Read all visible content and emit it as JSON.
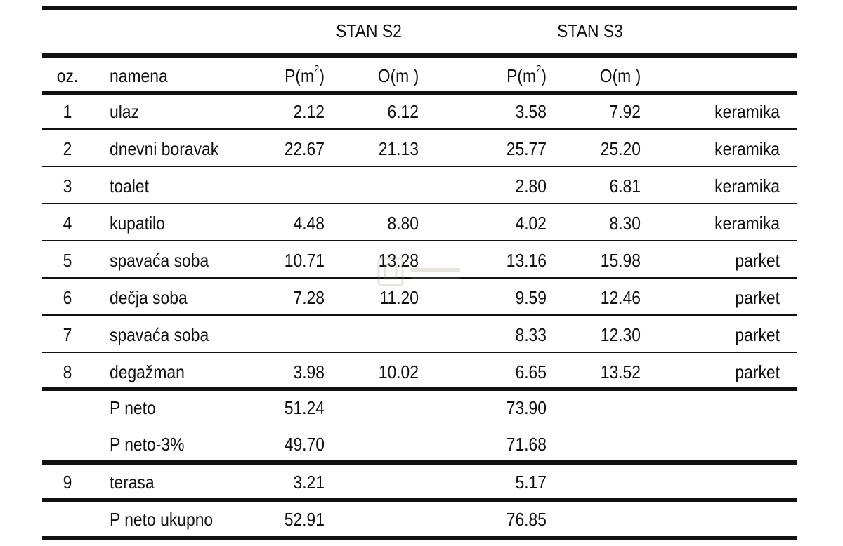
{
  "table": {
    "apartments": [
      "STAN S2",
      "STAN S3"
    ],
    "headers": {
      "oz": "oz.",
      "namena": "namena",
      "p_s2": "P(m",
      "o_s2": "O(m )",
      "p_s3": "P(m",
      "o_s3": "O(m )",
      "sup": "2"
    },
    "rows": [
      {
        "oz": "1",
        "namena": "ulaz",
        "p_s2": "2.12",
        "o_s2": "6.12",
        "p_s3": "3.58",
        "o_s3": "7.92",
        "finish": "keramika"
      },
      {
        "oz": "2",
        "namena": "dnevni boravak",
        "p_s2": "22.67",
        "o_s2": "21.13",
        "p_s3": "25.77",
        "o_s3": "25.20",
        "finish": "keramika"
      },
      {
        "oz": "3",
        "namena": "toalet",
        "p_s2": "",
        "o_s2": "",
        "p_s3": "2.80",
        "o_s3": "6.81",
        "finish": "keramika"
      },
      {
        "oz": "4",
        "namena": "kupatilo",
        "p_s2": "4.48",
        "o_s2": "8.80",
        "p_s3": "4.02",
        "o_s3": "8.30",
        "finish": "keramika"
      },
      {
        "oz": "5",
        "namena": "spavaća soba",
        "p_s2": "10.71",
        "o_s2": "13.28",
        "p_s3": "13.16",
        "o_s3": "15.98",
        "finish": "parket"
      },
      {
        "oz": "6",
        "namena": "dečja soba",
        "p_s2": "7.28",
        "o_s2": "11.20",
        "p_s3": "9.59",
        "o_s3": "12.46",
        "finish": "parket"
      },
      {
        "oz": "7",
        "namena": "spavaća soba",
        "p_s2": "",
        "o_s2": "",
        "p_s3": "8.33",
        "o_s3": "12.30",
        "finish": "parket"
      },
      {
        "oz": "8",
        "namena": "degažman",
        "p_s2": "3.98",
        "o_s2": "10.02",
        "p_s3": "6.65",
        "o_s3": "13.52",
        "finish": "parket"
      }
    ],
    "totals": [
      {
        "label": "P neto",
        "p_s2": "51.24",
        "p_s3": "73.90"
      },
      {
        "label": "P neto-3%",
        "p_s2": "49.70",
        "p_s3": "71.68"
      }
    ],
    "terrace": {
      "oz": "9",
      "namena": "terasa",
      "p_s2": "3.21",
      "p_s3": "5.17"
    },
    "grand_total": {
      "label": "P neto ukupno",
      "p_s2": "52.91",
      "p_s3": "76.85"
    }
  },
  "watermark": {
    "icon": "building-logo-icon"
  }
}
